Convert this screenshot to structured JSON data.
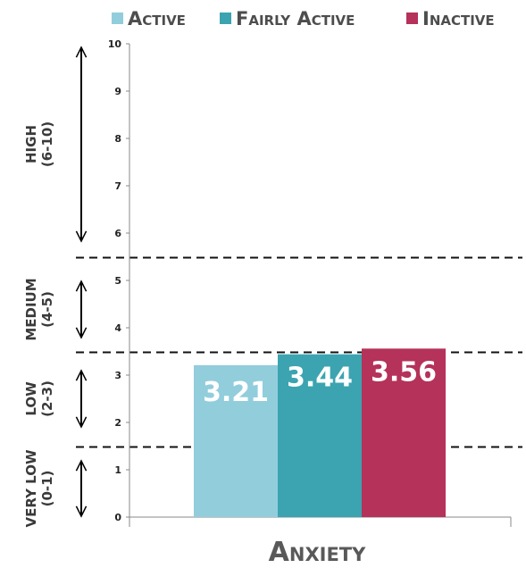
{
  "chart_data": {
    "type": "bar",
    "categories": [
      "Anxiety"
    ],
    "series": [
      {
        "name": "Active",
        "values": [
          3.21
        ],
        "color": "#92cddc",
        "label": "3.21"
      },
      {
        "name": "Fairly Active",
        "values": [
          3.44
        ],
        "color": "#3ba4b0",
        "label": "3.44"
      },
      {
        "name": "Inactive",
        "values": [
          3.56
        ],
        "color": "#b5325a",
        "label": "3.56"
      }
    ],
    "ylim": [
      0,
      10
    ],
    "yticks": [
      "0",
      "1",
      "2",
      "3",
      "4",
      "5",
      "6",
      "7",
      "8",
      "9",
      "10"
    ],
    "legend_position": "top",
    "grid": false,
    "thresholds": [
      1.5,
      3.5,
      5.5
    ],
    "bands": [
      {
        "line1": "Very Low",
        "line2": "(0-1)",
        "range": [
          0,
          1.5
        ]
      },
      {
        "line1": "Low",
        "line2": "(2-3)",
        "range": [
          1.5,
          3.5
        ]
      },
      {
        "line1": "Medium",
        "line2": "(4-5)",
        "range": [
          3.5,
          5.5
        ]
      },
      {
        "line1": "High",
        "line2": "(6-10)",
        "range": [
          5.5,
          10
        ]
      }
    ]
  }
}
